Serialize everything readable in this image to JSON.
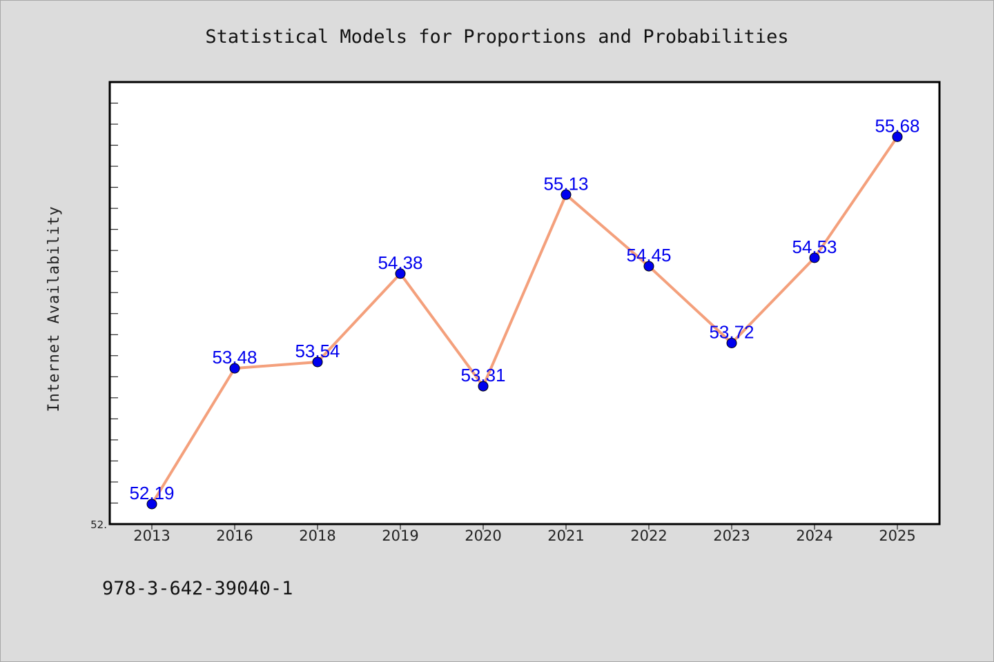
{
  "chart_data": {
    "type": "line",
    "title": "Statistical Models for Proportions and Probabilities",
    "xlabel": "",
    "ylabel": "Internet Availability",
    "categories": [
      "2013",
      "2016",
      "2018",
      "2019",
      "2020",
      "2021",
      "2022",
      "2023",
      "2024",
      "2025"
    ],
    "series": [
      {
        "values": [
          52.19,
          53.48,
          53.54,
          54.38,
          53.31,
          55.13,
          54.45,
          53.72,
          54.53,
          55.68
        ],
        "labels": [
          "52.19",
          "53.48",
          "53.54",
          "54.38",
          "53.31",
          "55.13",
          "54.45",
          "53.72",
          "54.53",
          "55.68"
        ]
      }
    ],
    "ylim": [
      52.0,
      56.2
    ],
    "yticklabels": [
      "52."
    ],
    "grid": false,
    "legend": "none"
  },
  "footer": {
    "isbn": "978-3-642-39040-1"
  },
  "colors": {
    "line": "#f4a07c",
    "marker": "#0000ee",
    "data_label": "#0000ee",
    "background": "#dcdcdc",
    "plot_background": "#ffffff"
  }
}
